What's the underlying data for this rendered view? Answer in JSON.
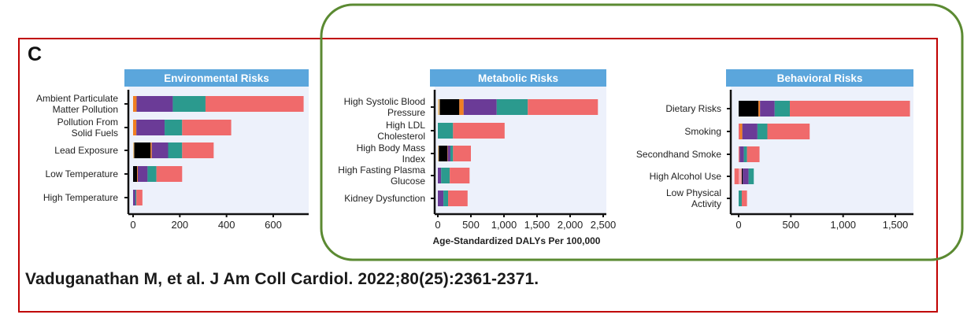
{
  "panel_label": "C",
  "citation": "Vaduganathan M, et al. J Am Coll Cardiol. 2022;80(25):2361-2371.",
  "colors": {
    "tan": "#e8c28a",
    "black": "#000000",
    "orange": "#f07f22",
    "purple": "#6b3b97",
    "teal": "#2b9a8e",
    "salmon": "#f06a6b",
    "pink": "#f4a6b0",
    "header": "#5ba6dc",
    "plot_bg": "#edf1fb",
    "highlight_frame": "#c00000",
    "annotation_ellipse": "#5b8a32"
  },
  "chart_data": [
    {
      "type": "bar",
      "orientation": "horizontal",
      "stacked": true,
      "title": "Environmental Risks",
      "xlabel": "",
      "xlim": [
        -10,
        740
      ],
      "xticks": [
        0,
        200,
        400,
        600
      ],
      "xtick_labels": [
        "0",
        "200",
        "400",
        "600"
      ],
      "categories": [
        "Ambient Particulate Matter Pollution",
        "Pollution From Solid Fuels",
        "Lead Exposure",
        "Low Temperature",
        "High Temperature"
      ],
      "bars": [
        [
          {
            "c": "orange",
            "from": 0,
            "to": 15
          },
          {
            "c": "purple",
            "from": 15,
            "to": 170
          },
          {
            "c": "teal",
            "from": 170,
            "to": 310
          },
          {
            "c": "salmon",
            "from": 310,
            "to": 730
          }
        ],
        [
          {
            "c": "orange",
            "from": 0,
            "to": 14
          },
          {
            "c": "purple",
            "from": 14,
            "to": 135
          },
          {
            "c": "teal",
            "from": 135,
            "to": 210
          },
          {
            "c": "salmon",
            "from": 210,
            "to": 420
          }
        ],
        [
          {
            "c": "tan",
            "from": 0,
            "to": 5
          },
          {
            "c": "black",
            "from": 5,
            "to": 75
          },
          {
            "c": "orange",
            "from": 75,
            "to": 80
          },
          {
            "c": "purple",
            "from": 80,
            "to": 150
          },
          {
            "c": "teal",
            "from": 150,
            "to": 210
          },
          {
            "c": "salmon",
            "from": 210,
            "to": 345
          }
        ],
        [
          {
            "c": "black",
            "from": 0,
            "to": 17
          },
          {
            "c": "orange",
            "from": 17,
            "to": 20
          },
          {
            "c": "purple",
            "from": 20,
            "to": 62
          },
          {
            "c": "teal",
            "from": 62,
            "to": 100
          },
          {
            "c": "salmon",
            "from": 100,
            "to": 210
          }
        ],
        [
          {
            "c": "purple",
            "from": 0,
            "to": 10
          },
          {
            "c": "teal",
            "from": 10,
            "to": 14
          },
          {
            "c": "salmon",
            "from": 14,
            "to": 40
          }
        ]
      ]
    },
    {
      "type": "bar",
      "orientation": "horizontal",
      "stacked": true,
      "title": "Metabolic Risks",
      "xlabel": "Age-Standardized DALYs Per 100,000",
      "xlim": [
        -120,
        2550
      ],
      "xticks": [
        0,
        500,
        1000,
        1500,
        2000,
        2500
      ],
      "xtick_labels": [
        "0",
        "500",
        "1,000",
        "1,500",
        "2,000",
        "2,500"
      ],
      "categories": [
        "High Systolic Blood Pressure",
        "High LDL Cholesterol",
        "High Body Mass Index",
        "High Fasting Plasma Glucose",
        "Kidney Dysfunction"
      ],
      "bars": [
        [
          {
            "c": "tan",
            "from": 0,
            "to": 30
          },
          {
            "c": "black",
            "from": 30,
            "to": 325
          },
          {
            "c": "orange",
            "from": 325,
            "to": 390
          },
          {
            "c": "purple",
            "from": 390,
            "to": 890
          },
          {
            "c": "teal",
            "from": 890,
            "to": 1360
          },
          {
            "c": "salmon",
            "from": 1360,
            "to": 2420
          }
        ],
        [
          {
            "c": "teal",
            "from": 0,
            "to": 230
          },
          {
            "c": "salmon",
            "from": 230,
            "to": 1010
          }
        ],
        [
          {
            "c": "tan",
            "from": 0,
            "to": 15
          },
          {
            "c": "black",
            "from": 15,
            "to": 145
          },
          {
            "c": "orange",
            "from": 145,
            "to": 150
          },
          {
            "c": "purple",
            "from": 150,
            "to": 190
          },
          {
            "c": "teal",
            "from": 190,
            "to": 230
          },
          {
            "c": "salmon",
            "from": 230,
            "to": 500
          }
        ],
        [
          {
            "c": "purple",
            "from": 0,
            "to": 50
          },
          {
            "c": "teal",
            "from": 50,
            "to": 180
          },
          {
            "c": "salmon",
            "from": 180,
            "to": 480
          }
        ],
        [
          {
            "c": "purple",
            "from": 0,
            "to": 85
          },
          {
            "c": "teal",
            "from": 85,
            "to": 155
          },
          {
            "c": "salmon",
            "from": 155,
            "to": 450
          }
        ]
      ]
    },
    {
      "type": "bar",
      "orientation": "horizontal",
      "stacked": true,
      "title": "Behavioral Risks",
      "xlabel": "",
      "xlim": [
        -110,
        1720
      ],
      "xticks": [
        0,
        500,
        1000,
        1500
      ],
      "xtick_labels": [
        "0",
        "500",
        "1,000",
        "1,500"
      ],
      "categories": [
        "Dietary Risks",
        "Smoking",
        "Secondhand Smoke",
        "High Alcohol Use",
        "Low Physical Activity"
      ],
      "bars": [
        [
          {
            "c": "black",
            "from": 0,
            "to": 190
          },
          {
            "c": "orange",
            "from": 190,
            "to": 205
          },
          {
            "c": "purple",
            "from": 205,
            "to": 345
          },
          {
            "c": "teal",
            "from": 345,
            "to": 490
          },
          {
            "c": "salmon",
            "from": 490,
            "to": 1640
          }
        ],
        [
          {
            "c": "salmon",
            "from": 0,
            "to": 15
          },
          {
            "c": "orange",
            "from": 15,
            "to": 35
          },
          {
            "c": "purple",
            "from": 35,
            "to": 180
          },
          {
            "c": "teal",
            "from": 180,
            "to": 275
          },
          {
            "c": "salmon",
            "from": 275,
            "to": 680
          }
        ],
        [
          {
            "c": "salmon",
            "from": 0,
            "to": 10
          },
          {
            "c": "purple",
            "from": 10,
            "to": 50
          },
          {
            "c": "teal",
            "from": 50,
            "to": 80
          },
          {
            "c": "salmon",
            "from": 80,
            "to": 200
          }
        ],
        [
          {
            "c": "salmon",
            "from": -40,
            "to": 0
          },
          {
            "c": "pink",
            "from": 0,
            "to": 30
          },
          {
            "c": "black",
            "from": 30,
            "to": 40
          },
          {
            "c": "purple",
            "from": 40,
            "to": 95
          },
          {
            "c": "teal",
            "from": 95,
            "to": 145
          }
        ],
        [
          {
            "c": "teal",
            "from": 0,
            "to": 30
          },
          {
            "c": "salmon",
            "from": 30,
            "to": 80
          }
        ]
      ]
    }
  ]
}
